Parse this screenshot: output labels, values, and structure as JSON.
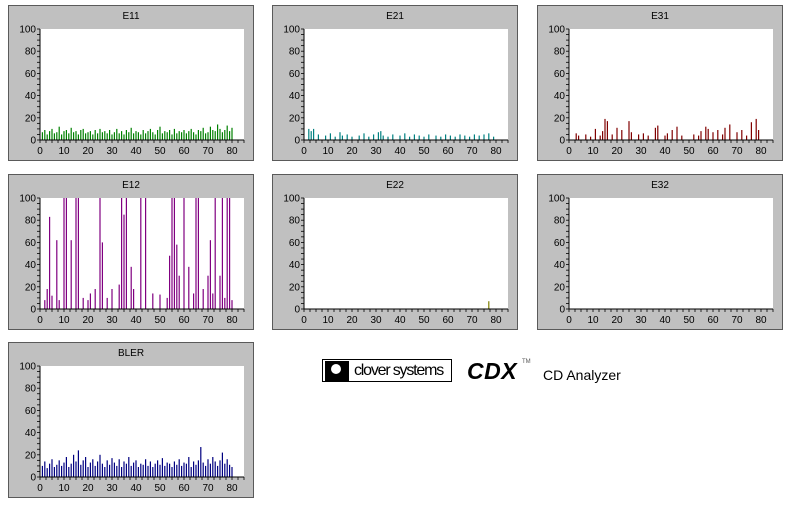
{
  "panels": [
    {
      "title": "E11",
      "color": "#008000",
      "col": 0,
      "row": 0
    },
    {
      "title": "E21",
      "color": "#008080",
      "col": 1,
      "row": 0
    },
    {
      "title": "E31",
      "color": "#800000",
      "col": 2,
      "row": 0
    },
    {
      "title": "E12",
      "color": "#800080",
      "col": 0,
      "row": 1
    },
    {
      "title": "E22",
      "color": "#808000",
      "col": 1,
      "row": 1
    },
    {
      "title": "E32",
      "color": "#808080",
      "col": 2,
      "row": 1
    },
    {
      "title": "BLER",
      "color": "#000080",
      "col": 0,
      "row": 2
    }
  ],
  "brand": {
    "company": "clover systems",
    "product": "CDX",
    "tm": "TM",
    "subtitle": "CD Analyzer"
  },
  "chart_data": [
    {
      "type": "bar",
      "title": "E11",
      "ylim": [
        0,
        100
      ],
      "xlim": [
        0,
        85
      ],
      "yticks": [
        0,
        20,
        40,
        60,
        80,
        100
      ],
      "xticks": [
        0,
        10,
        20,
        30,
        40,
        50,
        60,
        70,
        80
      ],
      "x": [
        1,
        2,
        3,
        4,
        5,
        6,
        7,
        8,
        9,
        10,
        11,
        12,
        13,
        14,
        15,
        16,
        17,
        18,
        19,
        20,
        21,
        22,
        23,
        24,
        25,
        26,
        27,
        28,
        29,
        30,
        31,
        32,
        33,
        34,
        35,
        36,
        37,
        38,
        39,
        40,
        41,
        42,
        43,
        44,
        45,
        46,
        47,
        48,
        49,
        50,
        51,
        52,
        53,
        54,
        55,
        56,
        57,
        58,
        59,
        60,
        61,
        62,
        63,
        64,
        65,
        66,
        67,
        68,
        69,
        70,
        71,
        72,
        73,
        74,
        75,
        76,
        77,
        78,
        79,
        80
      ],
      "values": [
        7,
        9,
        5,
        8,
        10,
        6,
        7,
        12,
        5,
        8,
        9,
        6,
        11,
        7,
        8,
        5,
        9,
        10,
        6,
        7,
        8,
        5,
        9,
        6,
        10,
        7,
        8,
        6,
        9,
        5,
        7,
        10,
        6,
        8,
        5,
        9,
        7,
        11,
        6,
        8,
        7,
        5,
        9,
        6,
        8,
        10,
        7,
        5,
        9,
        12,
        6,
        8,
        7,
        9,
        5,
        10,
        6,
        8,
        7,
        9,
        6,
        8,
        10,
        7,
        5,
        9,
        8,
        11,
        6,
        7,
        12,
        9,
        8,
        14,
        10,
        7,
        9,
        13,
        8,
        11
      ]
    },
    {
      "type": "bar",
      "title": "E21",
      "ylim": [
        0,
        100
      ],
      "xlim": [
        0,
        85
      ],
      "yticks": [
        0,
        20,
        40,
        60,
        80,
        100
      ],
      "xticks": [
        0,
        10,
        20,
        30,
        40,
        50,
        60,
        70,
        80
      ],
      "x": [
        2,
        3,
        4,
        6,
        9,
        11,
        13,
        15,
        16,
        18,
        20,
        23,
        25,
        27,
        29,
        31,
        32,
        33,
        35,
        37,
        40,
        42,
        44,
        46,
        48,
        50,
        52,
        55,
        57,
        59,
        61,
        63,
        65,
        67,
        69,
        71,
        73,
        75,
        77,
        79
      ],
      "values": [
        10,
        8,
        10,
        5,
        4,
        6,
        3,
        7,
        4,
        5,
        3,
        4,
        6,
        3,
        5,
        7,
        8,
        4,
        3,
        5,
        4,
        6,
        3,
        5,
        4,
        3,
        5,
        4,
        3,
        5,
        4,
        3,
        5,
        4,
        3,
        5,
        4,
        5,
        6,
        3
      ]
    },
    {
      "type": "bar",
      "title": "E31",
      "ylim": [
        0,
        100
      ],
      "xlim": [
        0,
        85
      ],
      "yticks": [
        0,
        20,
        40,
        60,
        80,
        100
      ],
      "xticks": [
        0,
        10,
        20,
        30,
        40,
        50,
        60,
        70,
        80
      ],
      "x": [
        3,
        4,
        7,
        9,
        11,
        13,
        14,
        15,
        16,
        18,
        20,
        22,
        25,
        26,
        29,
        31,
        33,
        36,
        37,
        40,
        41,
        43,
        45,
        47,
        52,
        54,
        55,
        57,
        58,
        60,
        62,
        64,
        65,
        67,
        70,
        72,
        74,
        76,
        78,
        79
      ],
      "values": [
        6,
        4,
        5,
        3,
        10,
        4,
        8,
        19,
        17,
        5,
        11,
        9,
        17,
        7,
        5,
        6,
        4,
        11,
        13,
        4,
        6,
        9,
        12,
        4,
        5,
        4,
        8,
        12,
        10,
        7,
        9,
        5,
        11,
        14,
        7,
        9,
        4,
        16,
        19,
        9
      ]
    },
    {
      "type": "bar",
      "title": "E12",
      "ylim": [
        0,
        100
      ],
      "xlim": [
        0,
        85
      ],
      "yticks": [
        0,
        20,
        40,
        60,
        80,
        100
      ],
      "xticks": [
        0,
        10,
        20,
        30,
        40,
        50,
        60,
        70,
        80
      ],
      "x": [
        2,
        3,
        4,
        5,
        7,
        8,
        10,
        11,
        13,
        15,
        16,
        18,
        20,
        21,
        23,
        25,
        26,
        28,
        30,
        33,
        34,
        35,
        36,
        38,
        39,
        42,
        44,
        47,
        50,
        53,
        54,
        55,
        56,
        57,
        58,
        60,
        62,
        64,
        65,
        66,
        68,
        70,
        71,
        72,
        73,
        75,
        76,
        77,
        78,
        79,
        80
      ],
      "values": [
        8,
        18,
        83,
        12,
        62,
        8,
        100,
        100,
        62,
        100,
        100,
        10,
        8,
        14,
        18,
        100,
        60,
        10,
        18,
        22,
        100,
        85,
        100,
        38,
        18,
        100,
        100,
        14,
        13,
        10,
        48,
        100,
        100,
        58,
        30,
        100,
        38,
        14,
        100,
        100,
        18,
        30,
        62,
        14,
        100,
        30,
        100,
        10,
        100,
        100,
        8
      ]
    },
    {
      "type": "bar",
      "title": "E22",
      "ylim": [
        0,
        100
      ],
      "xlim": [
        0,
        85
      ],
      "yticks": [
        0,
        20,
        40,
        60,
        80,
        100
      ],
      "xticks": [
        0,
        10,
        20,
        30,
        40,
        50,
        60,
        70,
        80
      ],
      "x": [
        77
      ],
      "values": [
        7
      ]
    },
    {
      "type": "bar",
      "title": "E32",
      "ylim": [
        0,
        100
      ],
      "xlim": [
        0,
        85
      ],
      "yticks": [
        0,
        20,
        40,
        60,
        80,
        100
      ],
      "xticks": [
        0,
        10,
        20,
        30,
        40,
        50,
        60,
        70,
        80
      ],
      "x": [],
      "values": []
    },
    {
      "type": "bar",
      "title": "BLER",
      "ylim": [
        0,
        100
      ],
      "xlim": [
        0,
        85
      ],
      "yticks": [
        0,
        20,
        40,
        60,
        80,
        100
      ],
      "xticks": [
        0,
        10,
        20,
        30,
        40,
        50,
        60,
        70,
        80
      ],
      "x": [
        1,
        2,
        3,
        4,
        5,
        6,
        7,
        8,
        9,
        10,
        11,
        12,
        13,
        14,
        15,
        16,
        17,
        18,
        19,
        20,
        21,
        22,
        23,
        24,
        25,
        26,
        27,
        28,
        29,
        30,
        31,
        32,
        33,
        34,
        35,
        36,
        37,
        38,
        39,
        40,
        41,
        42,
        43,
        44,
        45,
        46,
        47,
        48,
        49,
        50,
        51,
        52,
        53,
        54,
        55,
        56,
        57,
        58,
        59,
        60,
        61,
        62,
        63,
        64,
        65,
        66,
        67,
        68,
        69,
        70,
        71,
        72,
        73,
        74,
        75,
        76,
        77,
        78,
        79,
        80
      ],
      "values": [
        10,
        14,
        8,
        12,
        16,
        9,
        11,
        15,
        10,
        13,
        18,
        9,
        12,
        20,
        14,
        24,
        11,
        15,
        18,
        9,
        13,
        16,
        10,
        14,
        20,
        12,
        9,
        15,
        11,
        17,
        13,
        10,
        16,
        9,
        14,
        12,
        18,
        10,
        13,
        15,
        9,
        12,
        11,
        16,
        10,
        14,
        9,
        12,
        15,
        11,
        17,
        10,
        13,
        12,
        9,
        14,
        11,
        16,
        10,
        13,
        12,
        18,
        9,
        14,
        11,
        15,
        27,
        13,
        10,
        16,
        12,
        18,
        14,
        10,
        15,
        22,
        12,
        16,
        11,
        9
      ]
    }
  ]
}
